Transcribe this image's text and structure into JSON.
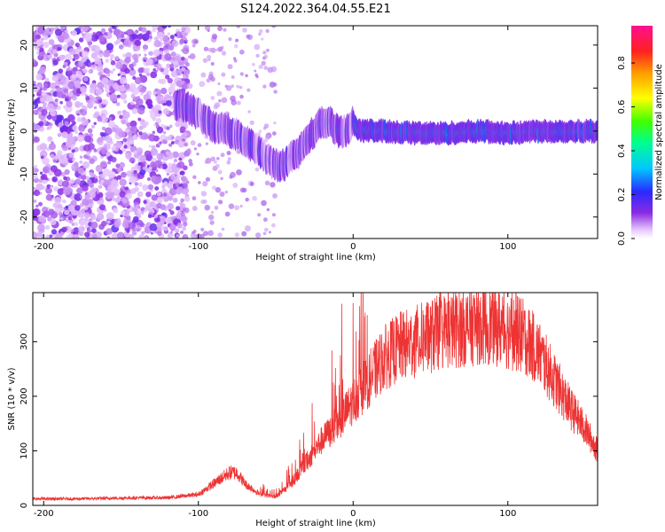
{
  "title": "S124.2022.364.04.55.E21",
  "chart_data": [
    {
      "type": "heatmap",
      "xlabel": "Height of straight line (km)",
      "ylabel": "Frequency (Hz)",
      "xlim": [
        -207,
        158
      ],
      "ylim": [
        -25,
        24.5
      ],
      "xticks": [
        -200,
        -100,
        0,
        100
      ],
      "yticks": [
        -20,
        -10,
        0,
        10,
        20
      ],
      "grid": false,
      "colorbar": {
        "label": "Normalized spectral amplitude",
        "range": [
          0,
          0.97
        ],
        "ticks": [
          "0.0",
          "0.2",
          "0.4",
          "0.6",
          "0.8"
        ],
        "colormap": "rainbow (white-purple-blue-cyan-green-yellow-orange-red-magenta)"
      },
      "ridge": {
        "description": "dominant frequency ridge vs height",
        "x": [
          -110,
          -100,
          -90,
          -80,
          -70,
          -60,
          -50,
          -45,
          -40,
          -35,
          -30,
          -25,
          -20,
          -15,
          -10,
          -5,
          0,
          5,
          10,
          20,
          40,
          60,
          80,
          100,
          120,
          140,
          158
        ],
        "y": [
          6,
          4,
          1,
          0,
          -2,
          -5,
          -8,
          -8,
          -6,
          -5,
          -2,
          0,
          2,
          2,
          0,
          0,
          2,
          0,
          0,
          0,
          -0.5,
          -0.5,
          0,
          -0.5,
          0,
          0,
          0
        ]
      }
    },
    {
      "type": "line",
      "xlabel": "Height of straight line (km)",
      "ylabel": "SNR (10 * v/v)",
      "xlim": [
        -207,
        158
      ],
      "ylim": [
        0,
        390
      ],
      "xticks": [
        -200,
        -100,
        0,
        100
      ],
      "yticks": [
        0,
        100,
        200,
        300
      ],
      "grid": false,
      "series": [
        {
          "color": "#ee3333",
          "envelope_x": [
            -207,
            -180,
            -140,
            -120,
            -100,
            -90,
            -80,
            -75,
            -70,
            -60,
            -50,
            -40,
            -30,
            -20,
            -10,
            0,
            10,
            20,
            30,
            40,
            50,
            60,
            70,
            80,
            90,
            100,
            110,
            120,
            130,
            140,
            150,
            158
          ],
          "envelope_y": [
            12,
            12,
            14,
            14,
            20,
            40,
            60,
            60,
            40,
            20,
            15,
            40,
            80,
            120,
            150,
            190,
            230,
            270,
            290,
            300,
            310,
            320,
            325,
            330,
            330,
            320,
            310,
            280,
            230,
            180,
            140,
            100
          ]
        }
      ]
    }
  ]
}
